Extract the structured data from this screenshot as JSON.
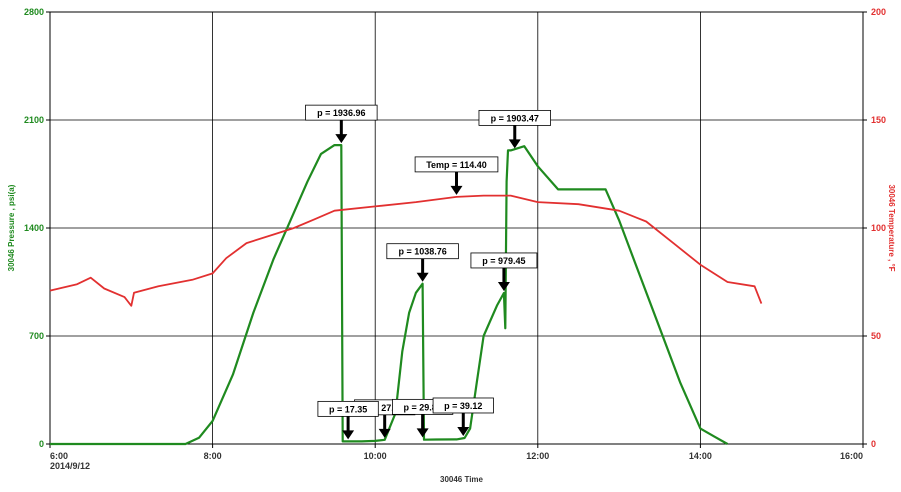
{
  "chart_data": {
    "type": "line",
    "date_label": "2014/9/12",
    "xlabel": "30046 Time",
    "ylabel_left": "30046 Pressure , psi(a)",
    "ylabel_right": "30046 Temperature , °F",
    "x_ticks": [
      "6:00",
      "8:00",
      "10:00",
      "12:00",
      "14:00",
      "16:00"
    ],
    "xlim": [
      "6:00",
      "16:00"
    ],
    "ylim_left": [
      0,
      2800
    ],
    "ylim_right": [
      0,
      200
    ],
    "y_ticks_left": [
      0,
      700,
      1400,
      2100,
      2800
    ],
    "y_ticks_right": [
      0,
      50,
      100,
      150,
      200
    ],
    "grid": true,
    "colors": {
      "pressure": "#1f8a1f",
      "temperature": "#e23030"
    },
    "series": [
      {
        "axis": "left",
        "color": "#1f8a1f",
        "points": [
          [
            "6:00",
            0
          ],
          [
            "7:40",
            0
          ],
          [
            "7:50",
            40
          ],
          [
            "8:00",
            150
          ],
          [
            "8:15",
            450
          ],
          [
            "8:30",
            850
          ],
          [
            "8:45",
            1200
          ],
          [
            "9:00",
            1500
          ],
          [
            "9:10",
            1700
          ],
          [
            "9:20",
            1880
          ],
          [
            "9:30",
            1937
          ],
          [
            "9:35",
            1937
          ],
          [
            "9:36",
            17
          ],
          [
            "9:50",
            17
          ],
          [
            "10:00",
            20
          ],
          [
            "10:07",
            27
          ],
          [
            "10:15",
            200
          ],
          [
            "10:20",
            600
          ],
          [
            "10:25",
            850
          ],
          [
            "10:30",
            980
          ],
          [
            "10:35",
            1039
          ],
          [
            "10:36",
            28
          ],
          [
            "10:45",
            29
          ],
          [
            "11:00",
            30
          ],
          [
            "11:06",
            39
          ],
          [
            "11:10",
            100
          ],
          [
            "11:15",
            400
          ],
          [
            "11:20",
            700
          ],
          [
            "11:30",
            900
          ],
          [
            "11:35",
            979
          ],
          [
            "11:36",
            750
          ],
          [
            "11:37",
            1700
          ],
          [
            "11:38",
            1903
          ],
          [
            "11:40",
            1903
          ],
          [
            "11:50",
            1930
          ],
          [
            "12:00",
            1800
          ],
          [
            "12:15",
            1650
          ],
          [
            "12:30",
            1650
          ],
          [
            "12:50",
            1650
          ],
          [
            "13:00",
            1450
          ],
          [
            "13:15",
            1100
          ],
          [
            "13:30",
            750
          ],
          [
            "13:45",
            400
          ],
          [
            "14:00",
            100
          ],
          [
            "14:10",
            50
          ],
          [
            "14:20",
            0
          ]
        ]
      },
      {
        "axis": "right",
        "color": "#e23030",
        "points": [
          [
            "6:00",
            71
          ],
          [
            "6:20",
            74
          ],
          [
            "6:30",
            77
          ],
          [
            "6:40",
            72
          ],
          [
            "6:55",
            68
          ],
          [
            "7:00",
            64
          ],
          [
            "7:02",
            70
          ],
          [
            "7:20",
            73
          ],
          [
            "7:45",
            76
          ],
          [
            "8:00",
            79
          ],
          [
            "8:10",
            86
          ],
          [
            "8:25",
            93
          ],
          [
            "8:45",
            97
          ],
          [
            "9:00",
            100
          ],
          [
            "9:15",
            104
          ],
          [
            "9:30",
            108
          ],
          [
            "10:00",
            110
          ],
          [
            "10:30",
            112
          ],
          [
            "11:00",
            114.4
          ],
          [
            "11:20",
            115
          ],
          [
            "11:40",
            115
          ],
          [
            "12:00",
            112
          ],
          [
            "12:30",
            111
          ],
          [
            "13:00",
            108
          ],
          [
            "13:20",
            103
          ],
          [
            "13:40",
            93
          ],
          [
            "14:00",
            83
          ],
          [
            "14:20",
            75
          ],
          [
            "14:40",
            73
          ],
          [
            "14:45",
            65
          ]
        ]
      }
    ],
    "annotations": [
      {
        "text": "p = 1936.96",
        "x": "9:35",
        "y": 1937,
        "axis": "left"
      },
      {
        "text": "p = 1903.47",
        "x": "11:43",
        "y": 1903,
        "axis": "left"
      },
      {
        "text": "Temp = 114.40",
        "x": "11:00",
        "y": 114.4,
        "axis": "right"
      },
      {
        "text": "p = 1038.76",
        "x": "10:35",
        "y": 1039,
        "axis": "left"
      },
      {
        "text": "p = 979.45",
        "x": "11:35",
        "y": 979,
        "axis": "left"
      },
      {
        "text": "p = 27.26",
        "x": "10:07",
        "y": 27,
        "axis": "left"
      },
      {
        "text": "p = 17.35",
        "x": "9:40",
        "y": 17,
        "axis": "left"
      },
      {
        "text": "p = 29.87",
        "x": "10:35",
        "y": 30,
        "axis": "left"
      },
      {
        "text": "p = 39.12",
        "x": "11:05",
        "y": 39,
        "axis": "left"
      }
    ]
  }
}
